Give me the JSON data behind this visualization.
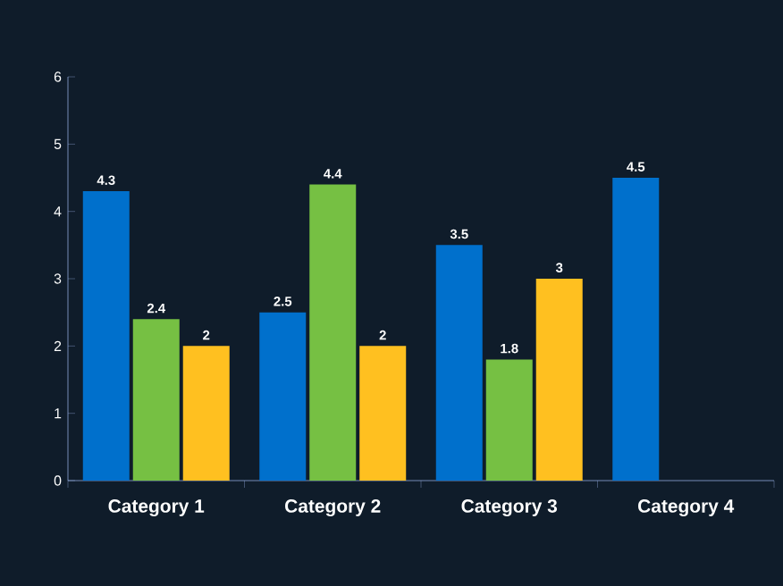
{
  "chart_data": {
    "type": "bar",
    "categories": [
      "Category 1",
      "Category 2",
      "Category 3",
      "Category 4"
    ],
    "series": [
      {
        "color": "#0070cc",
        "values": [
          4.3,
          2.5,
          3.5,
          4.5
        ]
      },
      {
        "color": "#76c043",
        "values": [
          2.4,
          4.4,
          1.8,
          null
        ]
      },
      {
        "color": "#ffc020",
        "values": [
          2,
          2,
          3,
          null
        ]
      }
    ],
    "ylim": [
      0,
      6
    ],
    "yticks": [
      0,
      1,
      2,
      3,
      4,
      5,
      6
    ],
    "data_labels": true,
    "grid": false
  }
}
